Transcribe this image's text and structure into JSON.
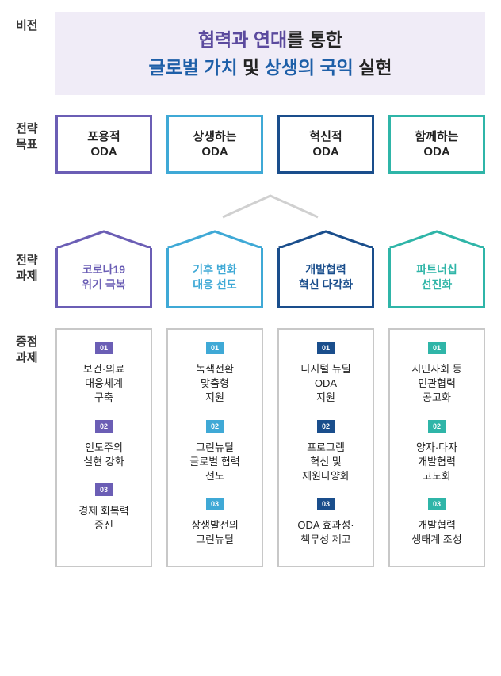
{
  "labels": {
    "vision": "비전",
    "goals": "전략\n목표",
    "tasks": "전략\n과제",
    "priority": "중점\n과제"
  },
  "vision": {
    "line1_accent": "협력과 연대",
    "line1_rest": "를 통한",
    "line2_accent1": "글로벌 가치",
    "line2_mid": " 및 ",
    "line2_accent2": "상생의 국익",
    "line2_rest": " 실현"
  },
  "colors": {
    "purple": "#6b5eb5",
    "skyblue": "#3fa9d6",
    "navy": "#1a4e8c",
    "teal": "#2fb5a8",
    "priority_border": "#c8c8c8"
  },
  "goals": [
    {
      "text": "포용적\nODA",
      "color": "#6b5eb5"
    },
    {
      "text": "상생하는\nODA",
      "color": "#3fa9d6"
    },
    {
      "text": "혁신적\nODA",
      "color": "#1a4e8c"
    },
    {
      "text": "함께하는\nODA",
      "color": "#2fb5a8"
    }
  ],
  "tasks": [
    {
      "text": "코로나19\n위기 극복",
      "color": "#6b5eb5"
    },
    {
      "text": "기후 변화\n대응 선도",
      "color": "#3fa9d6"
    },
    {
      "text": "개발협력\n혁신 다각화",
      "color": "#1a4e8c"
    },
    {
      "text": "파트너십\n선진화",
      "color": "#2fb5a8"
    }
  ],
  "priority": [
    {
      "color": "#6b5eb5",
      "items": [
        {
          "num": "01",
          "text": "보건·의료\n대응체계\n구축"
        },
        {
          "num": "02",
          "text": "인도주의\n실현 강화"
        },
        {
          "num": "03",
          "text": "경제 회복력\n증진"
        }
      ]
    },
    {
      "color": "#3fa9d6",
      "items": [
        {
          "num": "01",
          "text": "녹색전환\n맞춤형\n지원"
        },
        {
          "num": "02",
          "text": "그린뉴딜\n글로벌 협력\n선도"
        },
        {
          "num": "03",
          "text": "상생발전의\n그린뉴딜"
        }
      ]
    },
    {
      "color": "#1a4e8c",
      "items": [
        {
          "num": "01",
          "text": "디지털 뉴딜\nODA\n지원"
        },
        {
          "num": "02",
          "text": "프로그램\n혁신 및\n재원다양화"
        },
        {
          "num": "03",
          "text": "ODA 효과성·\n책무성 제고"
        }
      ]
    },
    {
      "color": "#2fb5a8",
      "items": [
        {
          "num": "01",
          "text": "시민사회 등\n민관협력\n공고화"
        },
        {
          "num": "02",
          "text": "양자·다자\n개발협력\n고도화"
        },
        {
          "num": "03",
          "text": "개발협력\n생태계 조성"
        }
      ]
    }
  ]
}
